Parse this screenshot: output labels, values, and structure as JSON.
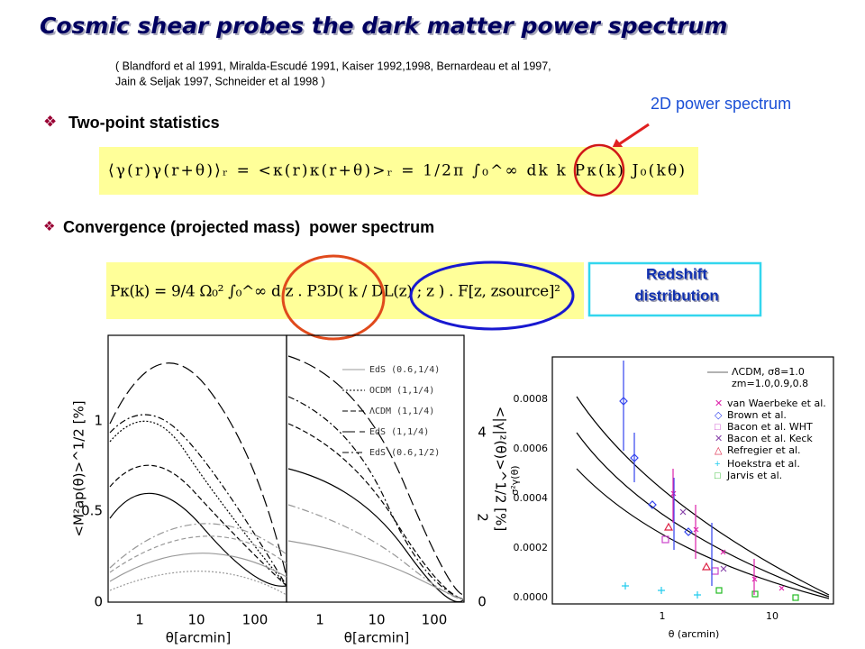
{
  "title": "Cosmic shear probes the dark matter power spectrum",
  "citation": [
    "( Blandford et al 1991, Miralda-Escudé 1991, Kaiser 1992,1998, Bernardeau et al 1997,",
    "Jain & Seljak 1997, Schneider et al 1998 )"
  ],
  "annotation": "2D power spectrum",
  "bullets": [
    "Two-point statistics",
    "Convergence (projected mass)  power spectrum"
  ],
  "equations": [
    "⟨γ(r)γ(r+θ)⟩ᵣ  =  <κ(r)κ(r+θ)>ᵣ  =  1/2π ∫₀^∞ dk k Pκ(k) J₀(kθ)",
    "Pκ(k) = 9/4 Ω₀² ∫₀^∞ d z  .  P3D( k / DL(z) ; z )  .  F[z, zsource]²"
  ],
  "redshift_box": [
    "Redshift",
    "distribution"
  ],
  "left_figure": {
    "y_label": "<M²ap(θ)>^1/2 [%]",
    "y2_label": "<|γ|²(θ)>^1/2 [%]",
    "x_label": "θ[arcmin]",
    "yticks": [
      "0",
      "0.5",
      "1"
    ],
    "y2ticks": [
      "0",
      "2",
      "4"
    ],
    "xticks": [
      "1",
      "10",
      "100"
    ],
    "legend": [
      "EdS (0.6,1/4)",
      "OCDM (1,1/4)",
      "ΛCDM (1,1/4)",
      "EdS (1,1/4)",
      "EdS (0.6,1/2)"
    ]
  },
  "right_figure": {
    "y_label": "σ²γ(θ)",
    "x_label": "θ (arcmin)",
    "yticks": [
      "0.0000",
      "0.0002",
      "0.0004",
      "0.0006",
      "0.0008"
    ],
    "xticks": [
      "1",
      "10"
    ],
    "model": [
      "ΛCDM, σ8=1.0",
      "zm=1.0,0.9,0.8"
    ],
    "legend": [
      "van Waerbeke et al.",
      "Brown et al.",
      "Bacon et al. WHT",
      "Bacon et al. Keck",
      "Refregier et al.",
      "Hoekstra et al.",
      "Jarvis et al."
    ]
  }
}
